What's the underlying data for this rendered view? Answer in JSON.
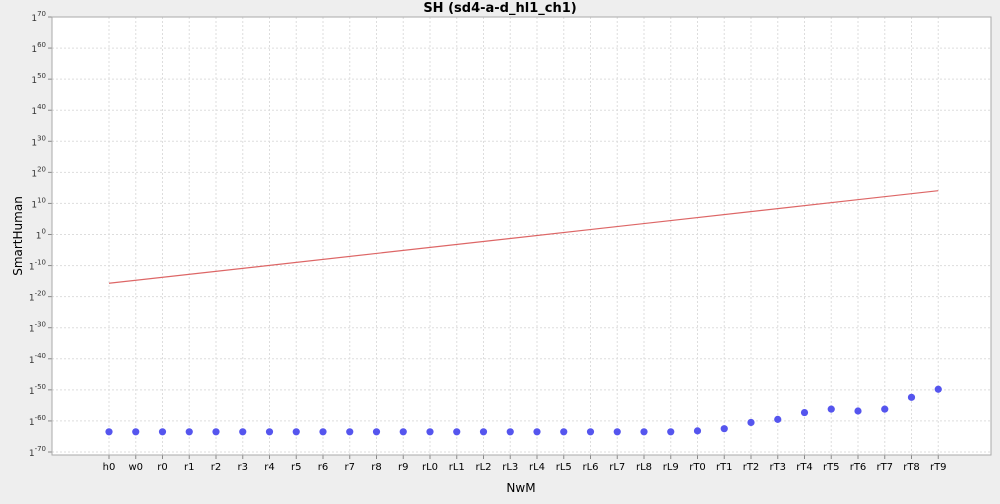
{
  "chart_data": {
    "type": "scatter",
    "title": "SH (sd4-a-d_hl1_ch1)",
    "xlabel": "NwM",
    "ylabel": "SmartHuman",
    "y_scale": "log",
    "y_tick_base": "1",
    "ylim_exponent": [
      -70,
      70
    ],
    "y_tick_exponents": [
      70,
      60,
      50,
      40,
      30,
      20,
      10,
      0,
      -10,
      -20,
      -30,
      -40,
      -50,
      -60,
      -70
    ],
    "grid": true,
    "legend": "none",
    "categories": [
      "h0",
      "w0",
      "r0",
      "r1",
      "r2",
      "r3",
      "r4",
      "r5",
      "r6",
      "r7",
      "r8",
      "r9",
      "rL0",
      "rL1",
      "rL2",
      "rL3",
      "rL4",
      "rL5",
      "rL6",
      "rL7",
      "rL8",
      "rL9",
      "rT0",
      "rT1",
      "rT2",
      "rT3",
      "rT4",
      "rT5",
      "rT6",
      "rT7",
      "rT8",
      "rT9"
    ],
    "series": [
      {
        "kind": "points",
        "color": "#5555ee",
        "values_exponent": [
          -63.5,
          -63.5,
          -63.5,
          -63.5,
          -63.5,
          -63.5,
          -63.5,
          -63.5,
          -63.5,
          -63.5,
          -63.5,
          -63.5,
          -63.5,
          -63.5,
          -63.5,
          -63.5,
          -63.5,
          -63.5,
          -63.5,
          -63.5,
          -63.5,
          -63.5,
          -63.2,
          -62.5,
          -60.5,
          -59.5,
          -57.3,
          -56.2,
          -56.8,
          -56.2,
          -52.4,
          -49.8
        ]
      },
      {
        "kind": "line",
        "color": "#dd6666",
        "values_exponent": [
          -15.7,
          14.1
        ]
      }
    ]
  }
}
